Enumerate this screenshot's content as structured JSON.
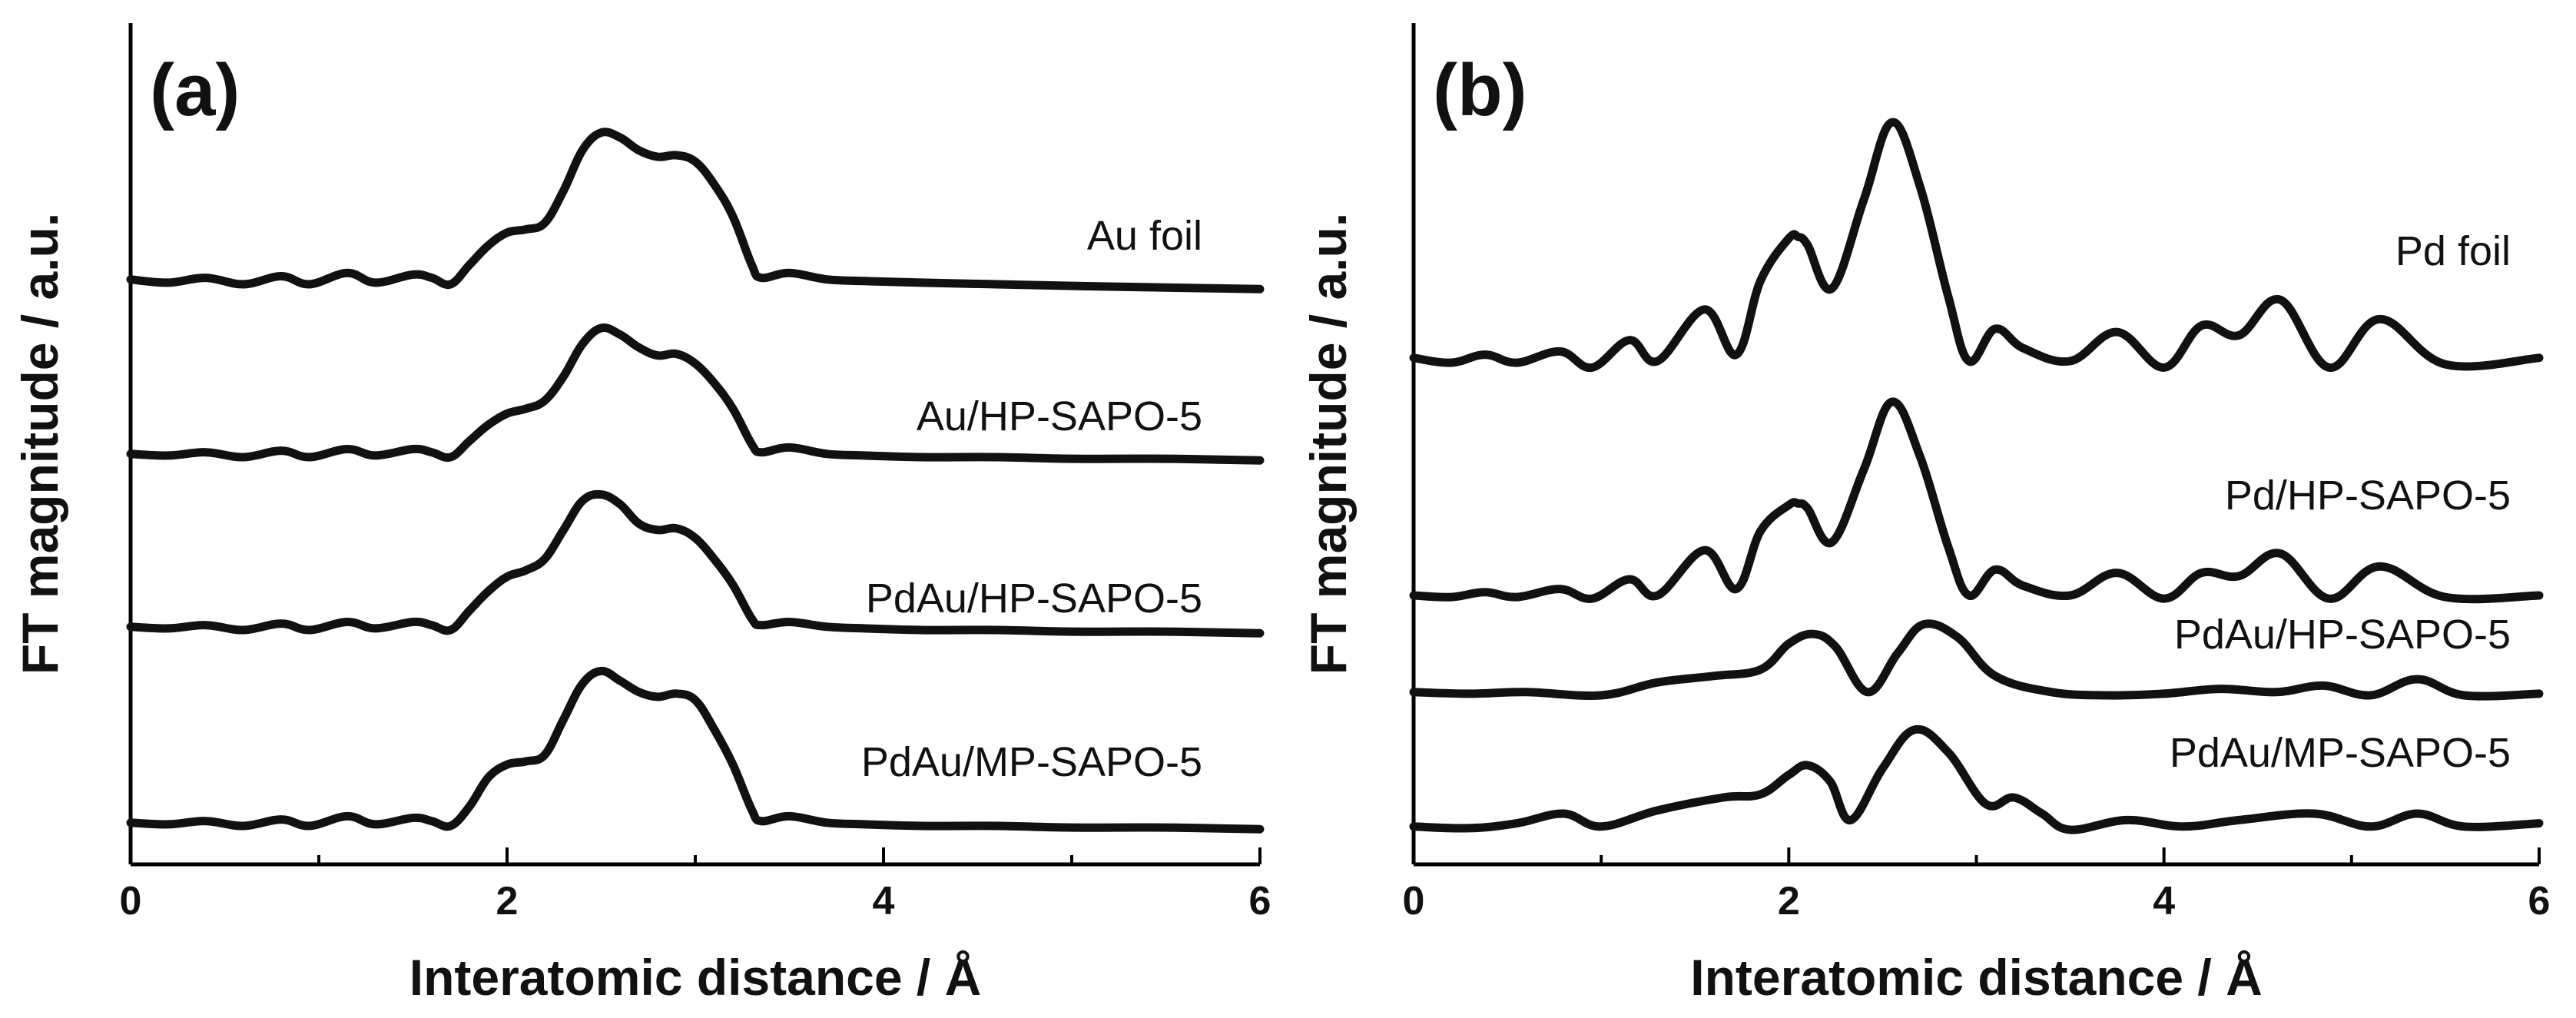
{
  "chart_data": [
    {
      "type": "line",
      "panel_label": "(a)",
      "xlabel": "Interatomic distance / Å",
      "ylabel": "FT magnitude / a.u.",
      "xlim": [
        0,
        6
      ],
      "xticks": [
        "0",
        "2",
        "4",
        "6"
      ],
      "y_tick_labels": false,
      "series": [
        {
          "name": "Au foil",
          "offset": 3,
          "x": [
            0,
            0.2,
            0.4,
            0.6,
            0.8,
            0.95,
            1.15,
            1.3,
            1.5,
            1.6,
            1.7,
            1.8,
            1.9,
            2.0,
            2.1,
            2.2,
            2.3,
            2.4,
            2.5,
            2.6,
            2.7,
            2.8,
            2.9,
            3.0,
            3.1,
            3.2,
            3.3,
            3.35,
            3.5,
            3.7,
            3.9,
            4.2,
            4.6,
            5.0,
            5.5,
            6.0
          ],
          "y": [
            0.03,
            0.01,
            0.04,
            0.0,
            0.05,
            0.0,
            0.07,
            0.01,
            0.06,
            0.04,
            0.0,
            0.12,
            0.24,
            0.32,
            0.34,
            0.38,
            0.58,
            0.83,
            0.94,
            0.91,
            0.83,
            0.79,
            0.8,
            0.76,
            0.62,
            0.42,
            0.12,
            0.04,
            0.07,
            0.03,
            0.02,
            0.01,
            0.0,
            -0.01,
            -0.02,
            -0.03
          ]
        },
        {
          "name": "Au/HP-SAPO-5",
          "offset": 2,
          "x": [
            0,
            0.2,
            0.4,
            0.6,
            0.8,
            0.95,
            1.15,
            1.3,
            1.5,
            1.6,
            1.7,
            1.8,
            1.9,
            2.0,
            2.1,
            2.2,
            2.3,
            2.4,
            2.5,
            2.6,
            2.7,
            2.8,
            2.9,
            3.0,
            3.1,
            3.2,
            3.3,
            3.35,
            3.5,
            3.7,
            3.9,
            4.2,
            4.6,
            5.0,
            5.5,
            6.0
          ],
          "y": [
            0.02,
            0.01,
            0.03,
            0.0,
            0.04,
            0.0,
            0.05,
            0.01,
            0.05,
            0.03,
            0.0,
            0.1,
            0.2,
            0.27,
            0.3,
            0.35,
            0.5,
            0.7,
            0.8,
            0.76,
            0.68,
            0.63,
            0.64,
            0.58,
            0.46,
            0.3,
            0.08,
            0.03,
            0.06,
            0.02,
            0.01,
            0.0,
            0.0,
            -0.01,
            -0.01,
            -0.02
          ]
        },
        {
          "name": "PdAu/HP-SAPO-5",
          "offset": 1,
          "x": [
            0,
            0.2,
            0.4,
            0.6,
            0.8,
            0.95,
            1.15,
            1.3,
            1.5,
            1.6,
            1.7,
            1.8,
            1.9,
            2.0,
            2.1,
            2.2,
            2.3,
            2.4,
            2.5,
            2.6,
            2.7,
            2.8,
            2.9,
            3.0,
            3.1,
            3.2,
            3.3,
            3.35,
            3.5,
            3.7,
            3.9,
            4.2,
            4.6,
            5.0,
            5.5,
            6.0
          ],
          "y": [
            0.02,
            0.01,
            0.03,
            0.0,
            0.04,
            0.0,
            0.05,
            0.01,
            0.05,
            0.03,
            0.0,
            0.12,
            0.24,
            0.33,
            0.37,
            0.44,
            0.62,
            0.8,
            0.84,
            0.78,
            0.66,
            0.62,
            0.63,
            0.57,
            0.44,
            0.28,
            0.07,
            0.03,
            0.05,
            0.02,
            0.01,
            0.0,
            0.0,
            -0.01,
            -0.01,
            -0.02
          ]
        },
        {
          "name": "PdAu/MP-SAPO-5",
          "offset": 0,
          "x": [
            0,
            0.2,
            0.4,
            0.6,
            0.8,
            0.95,
            1.15,
            1.3,
            1.5,
            1.6,
            1.7,
            1.8,
            1.9,
            2.0,
            2.1,
            2.2,
            2.3,
            2.4,
            2.5,
            2.6,
            2.7,
            2.8,
            2.9,
            3.0,
            3.1,
            3.2,
            3.3,
            3.35,
            3.5,
            3.7,
            3.9,
            4.2,
            4.6,
            5.0,
            5.5,
            6.0
          ],
          "y": [
            0.02,
            0.01,
            0.03,
            0.0,
            0.04,
            0.0,
            0.06,
            0.01,
            0.05,
            0.03,
            0.0,
            0.12,
            0.3,
            0.38,
            0.4,
            0.44,
            0.66,
            0.88,
            0.96,
            0.9,
            0.83,
            0.8,
            0.82,
            0.78,
            0.6,
            0.38,
            0.1,
            0.03,
            0.06,
            0.02,
            0.01,
            0.0,
            0.0,
            -0.01,
            -0.01,
            -0.02
          ]
        }
      ]
    },
    {
      "type": "line",
      "panel_label": "(b)",
      "xlabel": "Interatomic distance / Å",
      "ylabel": "FT magnitude / a.u.",
      "xlim": [
        0,
        6
      ],
      "xticks": [
        "0",
        "2",
        "4",
        "6"
      ],
      "y_tick_labels": false,
      "series": [
        {
          "name": "Pd foil",
          "offset": 3,
          "x": [
            0,
            0.2,
            0.38,
            0.55,
            0.78,
            0.95,
            1.15,
            1.3,
            1.55,
            1.72,
            1.85,
            2.0,
            2.05,
            2.1,
            2.23,
            2.4,
            2.55,
            2.7,
            2.85,
            2.96,
            3.1,
            3.25,
            3.5,
            3.75,
            4.0,
            4.2,
            4.4,
            4.62,
            4.88,
            5.15,
            5.5,
            6.0
          ],
          "y": [
            0.02,
            -0.01,
            0.04,
            -0.01,
            0.06,
            -0.04,
            0.13,
            0.0,
            0.32,
            0.04,
            0.5,
            0.76,
            0.77,
            0.72,
            0.45,
            1.0,
            1.48,
            1.08,
            0.4,
            0.0,
            0.2,
            0.08,
            0.0,
            0.18,
            -0.04,
            0.22,
            0.16,
            0.38,
            -0.04,
            0.26,
            -0.02,
            0.02
          ]
        },
        {
          "name": "Pd/HP-SAPO-5",
          "offset": 2,
          "x": [
            0,
            0.2,
            0.38,
            0.55,
            0.78,
            0.95,
            1.15,
            1.3,
            1.55,
            1.72,
            1.85,
            2.0,
            2.05,
            2.1,
            2.23,
            2.4,
            2.55,
            2.7,
            2.85,
            2.96,
            3.1,
            3.25,
            3.5,
            3.75,
            4.0,
            4.2,
            4.4,
            4.62,
            4.88,
            5.15,
            5.5,
            6.0
          ],
          "y": [
            0.0,
            -0.01,
            0.02,
            -0.01,
            0.04,
            -0.02,
            0.1,
            0.0,
            0.28,
            0.04,
            0.4,
            0.56,
            0.57,
            0.54,
            0.33,
            0.78,
            1.2,
            0.86,
            0.3,
            0.0,
            0.16,
            0.06,
            0.0,
            0.14,
            -0.02,
            0.14,
            0.12,
            0.26,
            -0.02,
            0.18,
            -0.01,
            0.0
          ]
        },
        {
          "name": "PdAu/HP-SAPO-5",
          "offset": 1,
          "x": [
            0,
            0.3,
            0.6,
            1.0,
            1.3,
            1.6,
            1.85,
            2.0,
            2.13,
            2.25,
            2.42,
            2.58,
            2.72,
            2.9,
            3.1,
            3.4,
            3.7,
            4.0,
            4.3,
            4.6,
            4.85,
            5.1,
            5.35,
            5.6,
            6.0
          ],
          "y": [
            0.02,
            0.01,
            0.02,
            0.0,
            0.08,
            0.12,
            0.16,
            0.32,
            0.38,
            0.3,
            0.02,
            0.26,
            0.44,
            0.36,
            0.12,
            0.02,
            0.0,
            0.01,
            0.04,
            0.02,
            0.06,
            0.0,
            0.1,
            0.0,
            0.01
          ]
        },
        {
          "name": "PdAu/MP-SAPO-5",
          "offset": 0,
          "x": [
            0,
            0.3,
            0.55,
            0.8,
            1.0,
            1.3,
            1.65,
            1.85,
            2.0,
            2.1,
            2.22,
            2.33,
            2.5,
            2.67,
            2.85,
            3.05,
            3.2,
            3.35,
            3.5,
            3.8,
            4.1,
            4.4,
            4.8,
            5.1,
            5.35,
            5.6,
            6.0
          ],
          "y": [
            0.02,
            0.01,
            0.04,
            0.1,
            0.02,
            0.12,
            0.2,
            0.22,
            0.34,
            0.4,
            0.3,
            0.06,
            0.38,
            0.62,
            0.48,
            0.16,
            0.2,
            0.1,
            0.0,
            0.06,
            0.02,
            0.06,
            0.1,
            0.02,
            0.1,
            0.02,
            0.04
          ]
        }
      ]
    }
  ]
}
